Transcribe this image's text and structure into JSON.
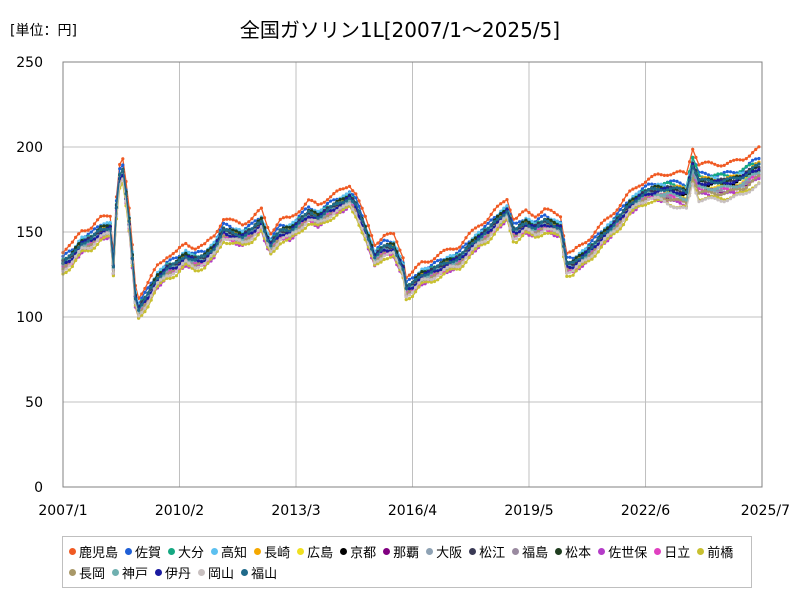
{
  "chart_data": {
    "type": "line",
    "title": "全国ガソリン1L[2007/1～2025/5]",
    "unit_label": "[単位：円]",
    "xlabel": "",
    "ylabel": "",
    "ylim": [
      0,
      250
    ],
    "xlim": [
      2007.0,
      2025.5
    ],
    "grid": true,
    "legend_position": "bottom",
    "y_ticks": [
      0,
      50,
      100,
      150,
      200,
      250
    ],
    "x_ticks": [
      {
        "label": "2007/1",
        "value": 2007.0
      },
      {
        "label": "2010/2",
        "value": 2010.083
      },
      {
        "label": "2013/3",
        "value": 2013.167
      },
      {
        "label": "2016/4",
        "value": 2016.25
      },
      {
        "label": "2019/5",
        "value": 2019.333
      },
      {
        "label": "2022/6",
        "value": 2022.417
      },
      {
        "label": "2025/7",
        "value": 2025.5
      }
    ],
    "base_series": {
      "x": [
        2007.0,
        2007.25,
        2007.5,
        2007.75,
        2008.0,
        2008.25,
        2008.33,
        2008.42,
        2008.5,
        2008.58,
        2008.67,
        2008.75,
        2008.83,
        2008.92,
        2009.0,
        2009.25,
        2009.5,
        2009.75,
        2010.0,
        2010.25,
        2010.5,
        2010.75,
        2011.0,
        2011.25,
        2011.5,
        2011.75,
        2012.0,
        2012.25,
        2012.42,
        2012.5,
        2012.75,
        2013.0,
        2013.25,
        2013.5,
        2013.75,
        2014.0,
        2014.25,
        2014.42,
        2014.58,
        2014.75,
        2015.0,
        2015.25,
        2015.5,
        2015.75,
        2016.0,
        2016.08,
        2016.25,
        2016.5,
        2016.75,
        2017.0,
        2017.25,
        2017.5,
        2017.75,
        2018.0,
        2018.25,
        2018.5,
        2018.75,
        2018.92,
        2019.0,
        2019.25,
        2019.5,
        2019.75,
        2020.0,
        2020.17,
        2020.33,
        2020.5,
        2020.75,
        2021.0,
        2021.25,
        2021.5,
        2021.75,
        2022.0,
        2022.25,
        2022.5,
        2022.75,
        2023.0,
        2023.25,
        2023.5,
        2023.67,
        2023.83,
        2024.0,
        2024.25,
        2024.5,
        2024.75,
        2025.0,
        2025.25,
        2025.42
      ],
      "y": [
        131,
        135,
        143,
        145,
        150,
        152,
        128,
        165,
        182,
        185,
        170,
        155,
        135,
        110,
        104,
        112,
        122,
        128,
        130,
        135,
        133,
        134,
        140,
        150,
        148,
        147,
        150,
        155,
        145,
        142,
        149,
        150,
        155,
        160,
        158,
        162,
        165,
        167,
        170,
        165,
        150,
        135,
        140,
        140,
        128,
        116,
        118,
        124,
        126,
        129,
        132,
        134,
        140,
        146,
        150,
        156,
        162,
        150,
        150,
        154,
        152,
        155,
        153,
        152,
        130,
        130,
        135,
        140,
        146,
        152,
        158,
        165,
        170,
        173,
        174,
        174,
        173,
        172,
        188,
        178,
        178,
        178,
        178,
        179,
        181,
        185,
        187
      ]
    },
    "series": [
      {
        "name": "鹿児島",
        "color": "#f05a23",
        "offset": 8,
        "late_extra": 4
      },
      {
        "name": "佐賀",
        "color": "#1f5fd6",
        "offset": 4,
        "late_extra": 2
      },
      {
        "name": "大分",
        "color": "#15a882",
        "offset": 2,
        "late_extra": 3
      },
      {
        "name": "高知",
        "color": "#5cc0f0",
        "offset": 3,
        "late_extra": 0
      },
      {
        "name": "長崎",
        "color": "#f5a800",
        "offset": 1,
        "late_extra": 2
      },
      {
        "name": "広島",
        "color": "#f0e020",
        "offset": -1,
        "late_extra": 0
      },
      {
        "name": "京都",
        "color": "#000000",
        "offset": 0,
        "late_extra": 0
      },
      {
        "name": "那覇",
        "color": "#800080",
        "offset": -3,
        "late_extra": -1
      },
      {
        "name": "大阪",
        "color": "#8ea2b4",
        "offset": -1,
        "late_extra": -2
      },
      {
        "name": "松江",
        "color": "#3a3a55",
        "offset": 1,
        "late_extra": 1
      },
      {
        "name": "福島",
        "color": "#9a8aa0",
        "offset": -2,
        "late_extra": -2
      },
      {
        "name": "松本",
        "color": "#1f3d1f",
        "offset": 2,
        "late_extra": 0
      },
      {
        "name": "佐世保",
        "color": "#b43cc8",
        "offset": -4,
        "late_extra": -2
      },
      {
        "name": "日立",
        "color": "#e040c0",
        "offset": -2,
        "late_extra": -1
      },
      {
        "name": "前橋",
        "color": "#c8c030",
        "offset": -5,
        "late_extra": -3
      },
      {
        "name": "長岡",
        "color": "#a89868",
        "offset": -2,
        "late_extra": -3
      },
      {
        "name": "神戸",
        "color": "#70b0b0",
        "offset": -1,
        "late_extra": -1
      },
      {
        "name": "伊丹",
        "color": "#1a1aa0",
        "offset": 0,
        "late_extra": 1
      },
      {
        "name": "岡山",
        "color": "#c8c0c0",
        "offset": -3,
        "late_extra": -6
      },
      {
        "name": "福山",
        "color": "#1f6a8a",
        "offset": 1,
        "late_extra": 1
      }
    ]
  }
}
